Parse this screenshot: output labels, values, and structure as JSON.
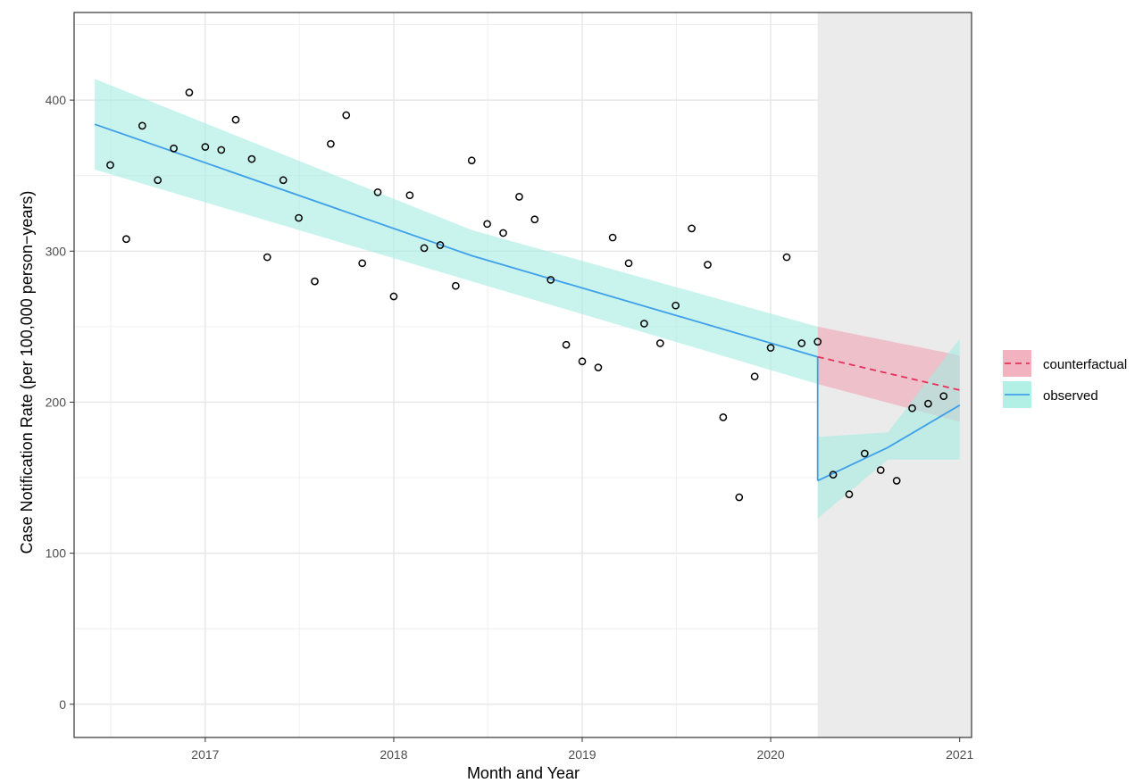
{
  "chart_data": {
    "type": "scatter",
    "title": "",
    "xlabel": "Month and Year",
    "ylabel": "Case Notification Rate (per 100,000 person−years)",
    "xlim": [
      "2016-04-22",
      "2021-01-24"
    ],
    "ylim": [
      -22,
      458
    ],
    "x_ticks": [
      "2017",
      "2018",
      "2019",
      "2020",
      "2021"
    ],
    "y_ticks": [
      0,
      100,
      200,
      300,
      400
    ],
    "grid": true,
    "background": "#ffffff",
    "intervention_period": {
      "start": "2020-04-01",
      "end": "2021-01-24",
      "color": "#ebebeb"
    },
    "observed_points": {
      "x": [
        "2016-07-01",
        "2016-08-01",
        "2016-09-01",
        "2016-10-01",
        "2016-11-01",
        "2016-12-01",
        "2017-01-01",
        "2017-02-01",
        "2017-03-01",
        "2017-04-01",
        "2017-05-01",
        "2017-06-01",
        "2017-07-01",
        "2017-08-01",
        "2017-09-01",
        "2017-10-01",
        "2017-11-01",
        "2017-12-01",
        "2018-01-01",
        "2018-02-01",
        "2018-03-01",
        "2018-04-01",
        "2018-05-01",
        "2018-06-01",
        "2018-07-01",
        "2018-08-01",
        "2018-09-01",
        "2018-10-01",
        "2018-11-01",
        "2018-12-01",
        "2019-01-01",
        "2019-02-01",
        "2019-03-01",
        "2019-04-01",
        "2019-05-01",
        "2019-06-01",
        "2019-07-01",
        "2019-08-01",
        "2019-09-01",
        "2019-10-01",
        "2019-11-01",
        "2019-12-01",
        "2020-01-01",
        "2020-02-01",
        "2020-03-01",
        "2020-04-01",
        "2020-05-01",
        "2020-06-01",
        "2020-07-01",
        "2020-08-01",
        "2020-09-01",
        "2020-10-01",
        "2020-11-01",
        "2020-12-01"
      ],
      "y": [
        357,
        308,
        383,
        347,
        368,
        405,
        369,
        367,
        387,
        361,
        296,
        347,
        322,
        280,
        371,
        390,
        292,
        339,
        270,
        337,
        302,
        304,
        277,
        360,
        318,
        312,
        336,
        321,
        281,
        238,
        227,
        223,
        309,
        292,
        252,
        239,
        264,
        315,
        291,
        190,
        137,
        217,
        236,
        296,
        239,
        240,
        152,
        139,
        166,
        155,
        148,
        196,
        199,
        204
      ]
    },
    "series": [
      {
        "name": "counterfactual",
        "color": "#e8305a",
        "fill": "#f0a4b4",
        "line": "dashed",
        "x": [
          "2020-04-01",
          "2021-01-01"
        ],
        "y": [
          230,
          208
        ],
        "ci_lower": [
          212,
          187
        ],
        "ci_upper": [
          250,
          231
        ]
      },
      {
        "name": "observed",
        "color": "#3fa0ea",
        "fill": "#a5ece1",
        "line": "solid",
        "segments": [
          {
            "x": [
              "2016-06-01",
              "2018-06-01",
              "2020-04-01"
            ],
            "y": [
              384,
              297,
              230
            ],
            "ci_lower": [
              354,
              280,
              212
            ],
            "ci_upper": [
              414,
              314,
              250
            ]
          },
          {
            "x": [
              "2020-04-01",
              "2020-08-15",
              "2021-01-01"
            ],
            "y": [
              148,
              170,
              198
            ],
            "ci_lower": [
              123,
              162,
              162
            ],
            "ci_upper": [
              177,
              180,
              242
            ]
          }
        ]
      }
    ],
    "legend": {
      "placement": "right",
      "entries": [
        "counterfactual",
        "observed"
      ]
    }
  }
}
